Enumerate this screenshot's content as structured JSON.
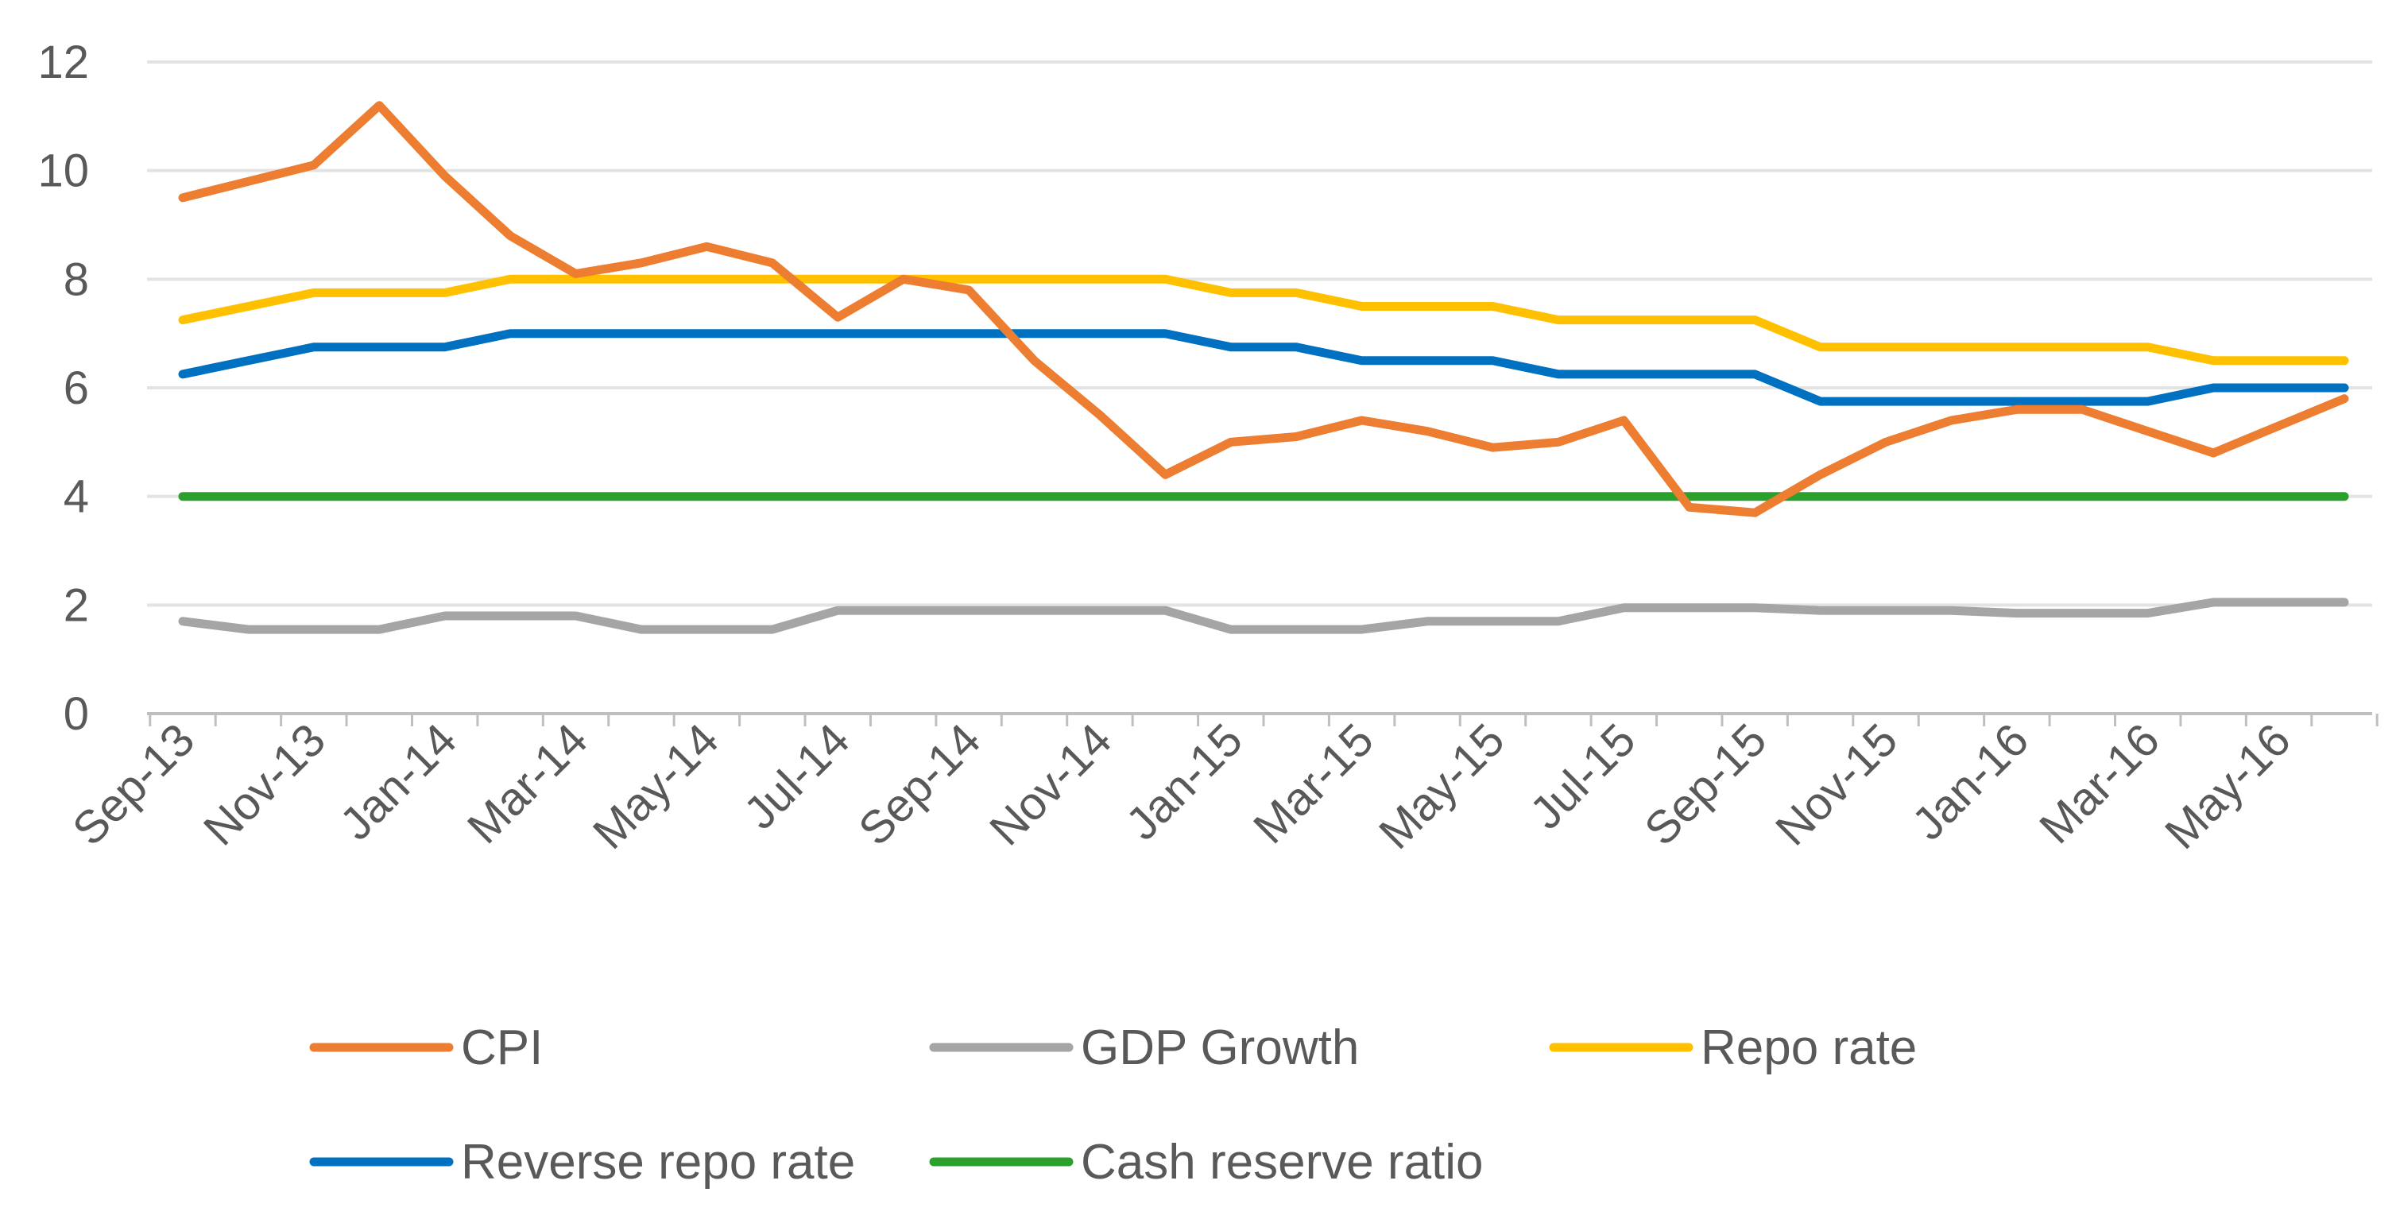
{
  "chart_data": {
    "type": "line",
    "title": "",
    "xlabel": "",
    "ylabel": "",
    "ylim": [
      0,
      12
    ],
    "yticks": [
      0,
      2,
      4,
      6,
      8,
      10,
      12
    ],
    "grid": true,
    "legend_position": "bottom",
    "x": [
      "Sep-13",
      "Oct-13",
      "Nov-13",
      "Dec-13",
      "Jan-14",
      "Feb-14",
      "Mar-14",
      "Apr-14",
      "May-14",
      "Jun-14",
      "Jul-14",
      "Aug-14",
      "Sep-14",
      "Oct-14",
      "Nov-14",
      "Dec-14",
      "Jan-15",
      "Feb-15",
      "Mar-15",
      "Apr-15",
      "May-15",
      "Jun-15",
      "Jul-15",
      "Aug-15",
      "Sep-15",
      "Oct-15",
      "Nov-15",
      "Dec-15",
      "Jan-16",
      "Feb-16",
      "Mar-16",
      "Apr-16",
      "May-16",
      "Jun-16"
    ],
    "x_tick_labels": [
      "Sep-13",
      "Nov-13",
      "Jan-14",
      "Mar-14",
      "May-14",
      "Jul-14",
      "Sep-14",
      "Nov-14",
      "Jan-15",
      "Mar-15",
      "May-15",
      "Jul-15",
      "Sep-15",
      "Nov-15",
      "Jan-16",
      "Mar-16",
      "May-16"
    ],
    "series": [
      {
        "name": "CPI",
        "color": "#ED7D31",
        "values": [
          9.5,
          9.8,
          10.1,
          11.2,
          9.9,
          8.8,
          8.1,
          8.3,
          8.6,
          8.3,
          7.3,
          8.0,
          7.8,
          6.5,
          5.5,
          4.4,
          5.0,
          5.1,
          5.4,
          5.2,
          4.9,
          5.0,
          5.4,
          3.8,
          3.7,
          4.4,
          5.0,
          5.4,
          5.6,
          5.6,
          5.2,
          4.8,
          5.3,
          5.8
        ]
      },
      {
        "name": "GDP Growth",
        "color": "#A5A5A5",
        "values": [
          1.7,
          1.55,
          1.55,
          1.55,
          1.8,
          1.8,
          1.8,
          1.55,
          1.55,
          1.55,
          1.9,
          1.9,
          1.9,
          1.9,
          1.9,
          1.9,
          1.55,
          1.55,
          1.55,
          1.7,
          1.7,
          1.7,
          1.95,
          1.95,
          1.95,
          1.9,
          1.9,
          1.9,
          1.85,
          1.85,
          1.85,
          2.05,
          2.05,
          2.05
        ]
      },
      {
        "name": "Repo rate",
        "color": "#FFC000",
        "values": [
          7.25,
          7.5,
          7.75,
          7.75,
          7.75,
          8,
          8,
          8,
          8,
          8,
          8,
          8,
          8,
          8,
          8,
          8,
          7.75,
          7.75,
          7.5,
          7.5,
          7.5,
          7.25,
          7.25,
          7.25,
          7.25,
          6.75,
          6.75,
          6.75,
          6.75,
          6.75,
          6.75,
          6.5,
          6.5,
          6.5
        ]
      },
      {
        "name": "Reverse repo rate",
        "color": "#0070C0",
        "values": [
          6.25,
          6.5,
          6.75,
          6.75,
          6.75,
          7,
          7,
          7,
          7,
          7,
          7,
          7,
          7,
          7,
          7,
          7,
          6.75,
          6.75,
          6.5,
          6.5,
          6.5,
          6.25,
          6.25,
          6.25,
          6.25,
          5.75,
          5.75,
          5.75,
          5.75,
          5.75,
          5.75,
          6,
          6,
          6
        ]
      },
      {
        "name": "Cash reserve ratio",
        "color": "#2CA02C",
        "values": [
          4,
          4,
          4,
          4,
          4,
          4,
          4,
          4,
          4,
          4,
          4,
          4,
          4,
          4,
          4,
          4,
          4,
          4,
          4,
          4,
          4,
          4,
          4,
          4,
          4,
          4,
          4,
          4,
          4,
          4,
          4,
          4,
          4,
          4
        ]
      }
    ]
  }
}
